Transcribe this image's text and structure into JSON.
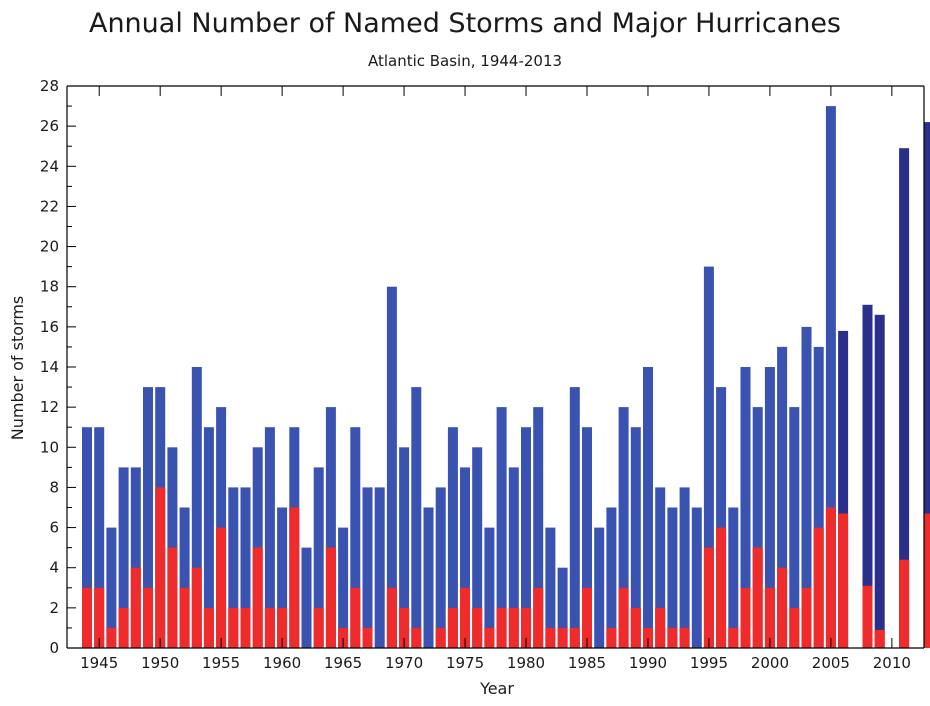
{
  "chart_data": {
    "type": "bar",
    "title": "Annual Number of Named Storms and Major Hurricanes",
    "subtitle": "Atlantic Basin, 1944-2013",
    "xlabel": "Year",
    "ylabel": "Number of storms",
    "ylim": [
      0,
      28
    ],
    "y_ticks": [
      0,
      2,
      4,
      6,
      8,
      10,
      12,
      14,
      16,
      18,
      20,
      22,
      24,
      26,
      28
    ],
    "x_tick_labels": [
      "1945",
      "1950",
      "1955",
      "1960",
      "1965",
      "1970",
      "1975",
      "1980",
      "1985",
      "1990",
      "1995",
      "2000",
      "2005",
      "2010"
    ],
    "grid": false,
    "colors": {
      "named_storms": "#3a53b0",
      "named_storms_later": "#2a2f8c",
      "major_hurricanes": "#ef2b2b"
    },
    "years": [
      1944,
      1945,
      1946,
      1947,
      1948,
      1949,
      1950,
      1951,
      1952,
      1953,
      1954,
      1955,
      1956,
      1957,
      1958,
      1959,
      1960,
      1961,
      1962,
      1963,
      1964,
      1965,
      1966,
      1967,
      1968,
      1969,
      1970,
      1971,
      1972,
      1973,
      1974,
      1975,
      1976,
      1977,
      1978,
      1979,
      1980,
      1981,
      1982,
      1983,
      1984,
      1985,
      1986,
      1987,
      1988,
      1989,
      1990,
      1991,
      1992,
      1993,
      1994,
      1995,
      1996,
      1997,
      1998,
      1999,
      2000,
      2001,
      2002,
      2003,
      2004,
      2005,
      2006,
      2007,
      2008,
      2009,
      2010,
      2011,
      2012,
      2013
    ],
    "series": [
      {
        "name": "Named storms",
        "values": [
          11,
          11,
          6,
          9,
          9,
          13,
          13,
          10,
          7,
          14,
          11,
          12,
          8,
          8,
          10,
          11,
          7,
          11,
          5,
          9,
          12,
          6,
          11,
          8,
          8,
          18,
          10,
          13,
          7,
          8,
          11,
          9,
          10,
          6,
          12,
          9,
          11,
          12,
          6,
          4,
          13,
          11,
          6,
          7,
          12,
          11,
          14,
          8,
          7,
          8,
          7,
          19,
          13,
          7,
          14,
          12,
          14,
          15,
          12,
          16,
          15,
          27,
          15.8,
          null,
          17.1,
          16.6,
          null,
          24.9,
          null,
          26.2
        ]
      },
      {
        "name": "Major hurricanes",
        "values": [
          3,
          3,
          1,
          2,
          4,
          3,
          8,
          5,
          3,
          4,
          2,
          6,
          2,
          2,
          5,
          2,
          2,
          7,
          0,
          2,
          5,
          1,
          3,
          1,
          0,
          3,
          2,
          1,
          0,
          1,
          2,
          3,
          2,
          1,
          2,
          2,
          2,
          3,
          1,
          1,
          1,
          3,
          0,
          1,
          3,
          2,
          1,
          2,
          1,
          1,
          0,
          5,
          6,
          1,
          3,
          5,
          3,
          4,
          2,
          3,
          6,
          7,
          6.7,
          null,
          3.1,
          0.9,
          null,
          4.4,
          null,
          6.7
        ]
      }
    ]
  }
}
